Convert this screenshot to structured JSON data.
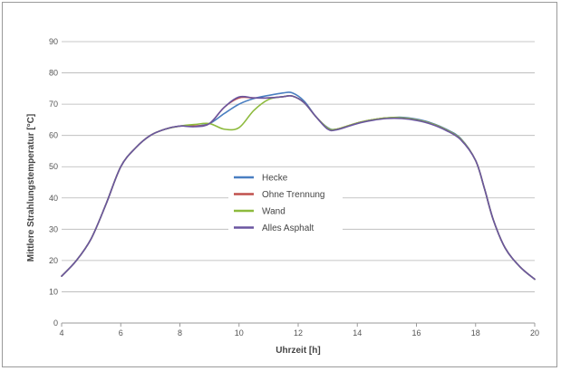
{
  "chart_data": {
    "type": "line",
    "title": "",
    "xlabel": "Uhrzeit [h]",
    "ylabel": "Mittlere Strahlungstemperatur [°C]",
    "xlim": [
      4,
      20
    ],
    "ylim": [
      0,
      90
    ],
    "xticks": [
      4,
      6,
      8,
      10,
      12,
      14,
      16,
      18,
      20
    ],
    "yticks": [
      0,
      10,
      20,
      30,
      40,
      50,
      60,
      70,
      80,
      90
    ],
    "grid": true,
    "legend_position": "center",
    "series": [
      {
        "name": "Hecke",
        "color": "#4a7fc1",
        "x": [
          4,
          4.5,
          5,
          5.5,
          6,
          6.5,
          7,
          7.5,
          8,
          8.5,
          9,
          9.5,
          10,
          10.5,
          11,
          11.5,
          11.8,
          12.2,
          12.6,
          13,
          13.3,
          14,
          14.5,
          15,
          15.5,
          16,
          16.5,
          17,
          17.5,
          18,
          18.3,
          18.6,
          19,
          19.5,
          20
        ],
        "values": [
          15,
          20,
          27,
          38,
          50,
          56,
          60,
          62,
          63,
          63,
          63.8,
          67,
          70,
          71.8,
          72.8,
          73.6,
          73.6,
          71,
          66,
          62.5,
          62,
          64,
          65,
          65.6,
          65.8,
          65.2,
          64,
          62,
          59,
          52,
          43,
          33,
          24,
          18,
          14
        ]
      },
      {
        "name": "Ohne Trennung",
        "color": "#c0504d",
        "x": [
          4,
          4.5,
          5,
          5.5,
          6,
          6.5,
          7,
          7.5,
          8,
          8.5,
          9,
          9.5,
          10,
          10.5,
          11,
          11.5,
          11.8,
          12.2,
          12.6,
          13,
          13.3,
          14,
          14.5,
          15,
          15.5,
          16,
          16.5,
          17,
          17.5,
          18,
          18.3,
          18.6,
          19,
          19.5,
          20
        ],
        "values": [
          15,
          20,
          27,
          38,
          50,
          56,
          60,
          62,
          63,
          63,
          63.8,
          69,
          72,
          72,
          72,
          72.4,
          72.6,
          70.5,
          66,
          62.3,
          62,
          64,
          65,
          65.6,
          65.6,
          65,
          63.8,
          61.8,
          58.8,
          52,
          43,
          33,
          24,
          18,
          14
        ]
      },
      {
        "name": "Wand",
        "color": "#8dba3d",
        "x": [
          4,
          4.5,
          5,
          5.5,
          6,
          6.5,
          7,
          7.5,
          8,
          8.5,
          9,
          9.5,
          10,
          10.5,
          11,
          11.5,
          11.8,
          12.2,
          12.6,
          13,
          13.3,
          14,
          14.5,
          15,
          15.5,
          16,
          16.5,
          17,
          17.5,
          18,
          18.3,
          18.6,
          19,
          19.5,
          20
        ],
        "values": [
          15,
          20,
          27,
          38,
          50,
          56,
          60,
          62,
          63,
          63.5,
          63.8,
          62,
          62.5,
          68,
          71.5,
          72.4,
          72.6,
          70.5,
          66,
          62.3,
          62,
          64,
          65,
          65.6,
          65.6,
          65,
          63.8,
          61.8,
          58.8,
          52,
          43,
          33,
          24,
          18,
          14
        ]
      },
      {
        "name": "Alles Asphalt",
        "color": "#6a55a0",
        "x": [
          4,
          4.5,
          5,
          5.5,
          6,
          6.5,
          7,
          7.5,
          8,
          8.5,
          9,
          9.5,
          10,
          10.5,
          11,
          11.5,
          11.8,
          12.2,
          12.6,
          13,
          13.3,
          14,
          14.5,
          15,
          15.5,
          16,
          16.5,
          17,
          17.5,
          18,
          18.3,
          18.6,
          19,
          19.5,
          20
        ],
        "values": [
          15,
          20,
          27,
          38,
          50,
          56,
          60,
          62,
          63,
          62.8,
          63.8,
          69,
          72.3,
          72,
          72,
          72.4,
          72.6,
          70.5,
          66,
          62,
          61.8,
          63.8,
          64.8,
          65.4,
          65.4,
          64.8,
          63.6,
          61.6,
          58.6,
          52,
          43,
          33,
          24,
          18,
          14
        ]
      }
    ]
  }
}
